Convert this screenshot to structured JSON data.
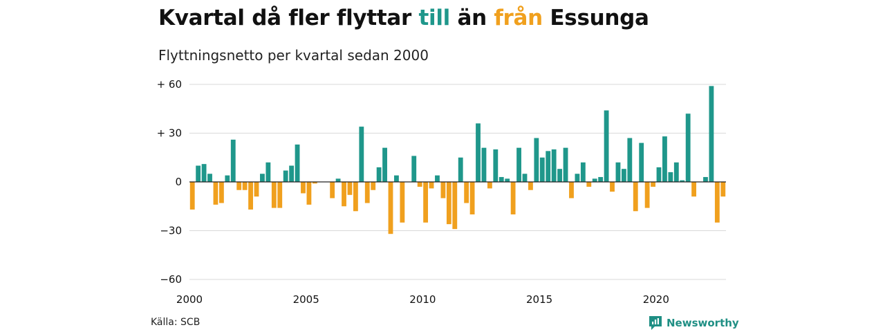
{
  "title": {
    "part1": "Kvartal då fler flyttar ",
    "highlight1": "till",
    "part2": " än ",
    "highlight2": "från",
    "part3": " Essunga"
  },
  "subtitle": "Flyttningsnetto per kvartal sedan 2000",
  "source": "Källa: SCB",
  "brand": "Newsworthy",
  "colors": {
    "positive": "#1f978b",
    "negative": "#f0a01e",
    "grid": "#d9d9d9",
    "baseline": "#222222",
    "text": "#111111"
  },
  "chart_data": {
    "type": "bar",
    "x_start": "2000 Q1",
    "values": [
      -17,
      10,
      11,
      5,
      -14,
      -13,
      4,
      26,
      -5,
      -5,
      -17,
      -9,
      5,
      12,
      -16,
      -16,
      7,
      10,
      23,
      -7,
      -14,
      -1,
      0,
      0,
      -10,
      2,
      -15,
      -8,
      -18,
      34,
      -13,
      -5,
      9,
      21,
      -32,
      4,
      -25,
      0,
      16,
      -3,
      -25,
      -4,
      4,
      -10,
      -26,
      -29,
      15,
      -13,
      -20,
      36,
      21,
      -4,
      20,
      3,
      2,
      -20,
      21,
      5,
      -5,
      27,
      15,
      19,
      20,
      8,
      21,
      -10,
      5,
      12,
      -3,
      2,
      3,
      44,
      -6,
      12,
      8,
      27,
      -18,
      24,
      -16,
      -3,
      9,
      28,
      6,
      12,
      1,
      42,
      -9,
      0,
      3,
      59,
      -25,
      -9
    ],
    "ylim": [
      -60,
      60
    ],
    "yticks": [
      {
        "value": 60,
        "label": "+ 60"
      },
      {
        "value": 30,
        "label": "+ 30"
      },
      {
        "value": 0,
        "label": "0"
      },
      {
        "value": -30,
        "label": "−30"
      },
      {
        "value": -60,
        "label": "−60"
      }
    ],
    "xticks": [
      {
        "index": 0,
        "label": "2000"
      },
      {
        "index": 20,
        "label": "2005"
      },
      {
        "index": 40,
        "label": "2010"
      },
      {
        "index": 60,
        "label": "2015"
      },
      {
        "index": 80,
        "label": "2020"
      }
    ],
    "grid": true
  }
}
